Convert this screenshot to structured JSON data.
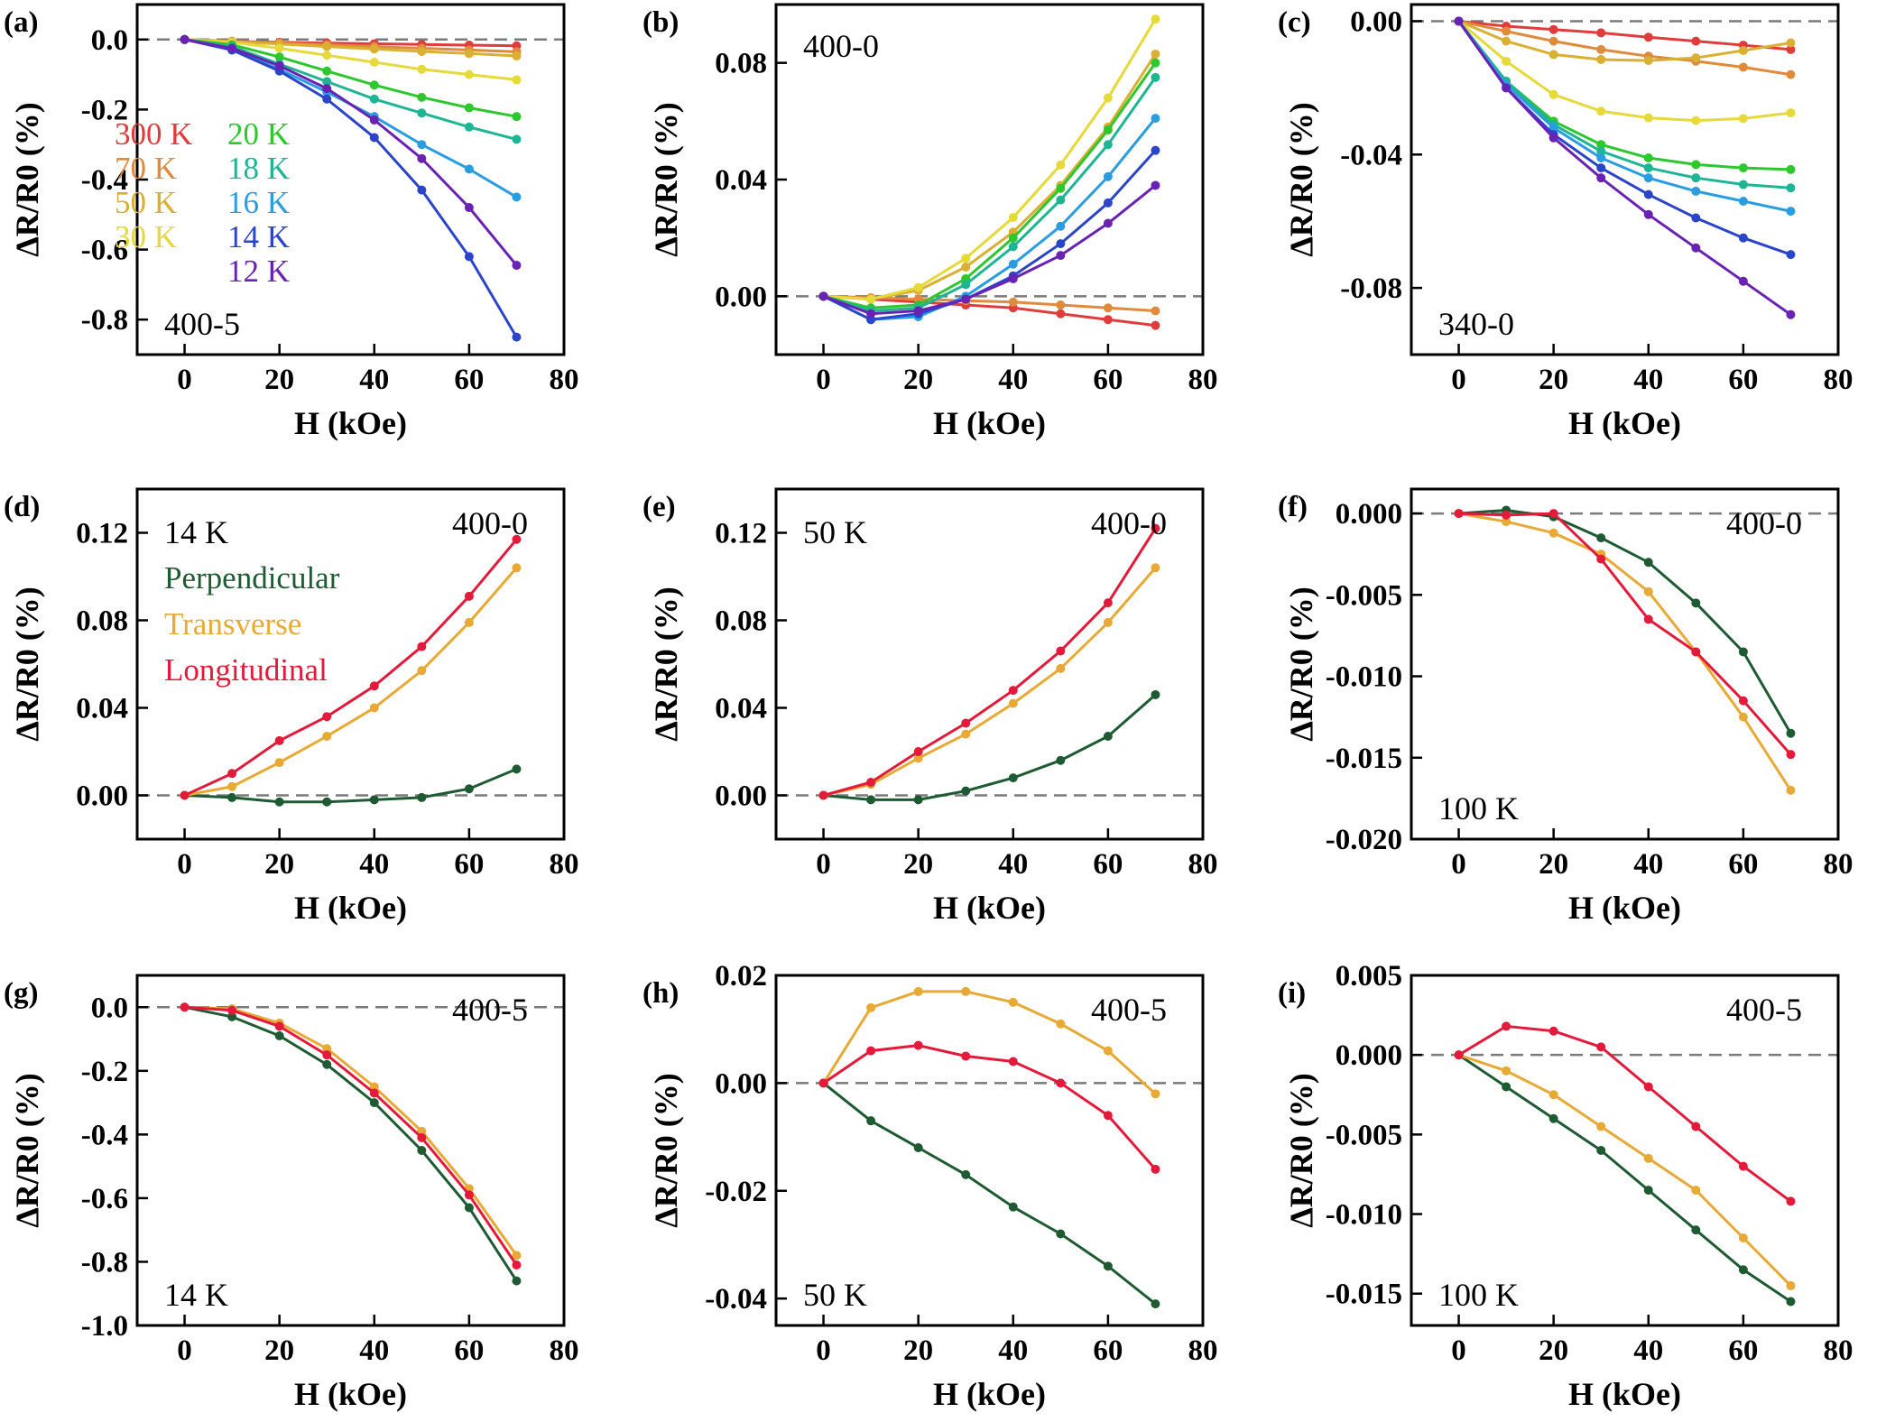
{
  "figure_title": "",
  "chart_data": [
    {
      "panel": "(a)",
      "type": "line",
      "annotation": "400-5",
      "xlabel": "H (kOe)",
      "ylabel": "ΔR/R0 (%)",
      "xlim": [
        -10,
        80
      ],
      "ylim": [
        -0.9,
        0.1
      ],
      "x_ticks": [
        0,
        20,
        40,
        60,
        80
      ],
      "x_tick_labels": [
        "0",
        "20",
        "40",
        "60",
        "80"
      ],
      "y_ticks": [
        0.0,
        -0.2,
        -0.4,
        -0.6,
        -0.8
      ],
      "y_tick_labels": [
        "0.0",
        "-0.2",
        "-0.4",
        "-0.6",
        "-0.8"
      ],
      "zero_line": true,
      "legend": {
        "placement": "left",
        "columns": 2
      },
      "x": [
        0,
        10,
        20,
        30,
        40,
        50,
        60,
        70
      ],
      "series": [
        {
          "name": "300 K",
          "color": "#e03c3c",
          "values": [
            0,
            -0.005,
            -0.008,
            -0.01,
            -0.012,
            -0.014,
            -0.016,
            -0.018
          ]
        },
        {
          "name": "70 K",
          "color": "#e08a3c",
          "values": [
            0,
            -0.005,
            -0.01,
            -0.015,
            -0.02,
            -0.025,
            -0.03,
            -0.035
          ]
        },
        {
          "name": "50 K",
          "color": "#d9b032",
          "values": [
            0,
            -0.006,
            -0.013,
            -0.02,
            -0.027,
            -0.034,
            -0.04,
            -0.047
          ]
        },
        {
          "name": "30 K",
          "color": "#e6d93a",
          "values": [
            0,
            -0.008,
            -0.025,
            -0.045,
            -0.065,
            -0.085,
            -0.1,
            -0.115
          ]
        },
        {
          "name": "20 K",
          "color": "#2ec72e",
          "values": [
            0,
            -0.015,
            -0.05,
            -0.09,
            -0.13,
            -0.165,
            -0.195,
            -0.22
          ]
        },
        {
          "name": "18 K",
          "color": "#1fb594",
          "values": [
            0,
            -0.02,
            -0.07,
            -0.12,
            -0.17,
            -0.21,
            -0.25,
            -0.285
          ]
        },
        {
          "name": "16 K",
          "color": "#2a9de0",
          "values": [
            0,
            -0.025,
            -0.085,
            -0.15,
            -0.22,
            -0.3,
            -0.37,
            -0.45
          ]
        },
        {
          "name": "14 K",
          "color": "#2a45c9",
          "values": [
            0,
            -0.03,
            -0.09,
            -0.17,
            -0.28,
            -0.43,
            -0.62,
            -0.85
          ]
        },
        {
          "name": "12 K",
          "color": "#6a22b3",
          "values": [
            0,
            -0.025,
            -0.075,
            -0.14,
            -0.23,
            -0.34,
            -0.48,
            -0.645
          ]
        }
      ]
    },
    {
      "panel": "(b)",
      "type": "line",
      "annotation": "400-0",
      "xlabel": "H (kOe)",
      "ylabel": "ΔR/R0 (%)",
      "xlim": [
        -10,
        80
      ],
      "ylim": [
        -0.02,
        0.1
      ],
      "x_ticks": [
        0,
        20,
        40,
        60,
        80
      ],
      "x_tick_labels": [
        "0",
        "20",
        "40",
        "60",
        "80"
      ],
      "y_ticks": [
        0.0,
        0.04,
        0.08
      ],
      "y_tick_labels": [
        "0.00",
        "0.04",
        "0.08"
      ],
      "zero_line": true,
      "x": [
        0,
        10,
        20,
        30,
        40,
        50,
        60,
        70
      ],
      "series": [
        {
          "name": "300 K",
          "color": "#e03c3c",
          "values": [
            0,
            -0.001,
            -0.002,
            -0.003,
            -0.004,
            -0.006,
            -0.008,
            -0.01
          ]
        },
        {
          "name": "70 K",
          "color": "#e08a3c",
          "values": [
            0,
            -0.0005,
            -0.001,
            -0.0015,
            -0.002,
            -0.003,
            -0.004,
            -0.005
          ]
        },
        {
          "name": "50 K",
          "color": "#d9b032",
          "values": [
            0,
            -0.001,
            0.002,
            0.01,
            0.022,
            0.038,
            0.058,
            0.083
          ]
        },
        {
          "name": "30 K",
          "color": "#e6d93a",
          "values": [
            0,
            -0.001,
            0.003,
            0.013,
            0.027,
            0.045,
            0.068,
            0.095
          ]
        },
        {
          "name": "20 K",
          "color": "#2ec72e",
          "values": [
            0,
            -0.004,
            -0.003,
            0.006,
            0.02,
            0.037,
            0.057,
            0.08
          ]
        },
        {
          "name": "18 K",
          "color": "#1fb594",
          "values": [
            0,
            -0.005,
            -0.004,
            0.004,
            0.017,
            0.033,
            0.052,
            0.075
          ]
        },
        {
          "name": "16 K",
          "color": "#2a9de0",
          "values": [
            0,
            -0.008,
            -0.007,
            0.0,
            0.011,
            0.024,
            0.041,
            0.061
          ]
        },
        {
          "name": "14 K",
          "color": "#2a45c9",
          "values": [
            0,
            -0.008,
            -0.006,
            -0.001,
            0.007,
            0.018,
            0.032,
            0.05
          ]
        },
        {
          "name": "12 K",
          "color": "#6a22b3",
          "values": [
            0,
            -0.006,
            -0.005,
            -0.001,
            0.006,
            0.014,
            0.025,
            0.038
          ]
        }
      ]
    },
    {
      "panel": "(c)",
      "type": "line",
      "annotation": "340-0",
      "xlabel": "H (kOe)",
      "ylabel": "ΔR/R0 (%)",
      "xlim": [
        -10,
        80
      ],
      "ylim": [
        -0.1,
        0.005
      ],
      "x_ticks": [
        0,
        20,
        40,
        60,
        80
      ],
      "x_tick_labels": [
        "0",
        "20",
        "40",
        "60",
        "80"
      ],
      "y_ticks": [
        0.0,
        -0.04,
        -0.08
      ],
      "y_tick_labels": [
        "0.00",
        "-0.04",
        "-0.08"
      ],
      "zero_line": true,
      "x": [
        0,
        10,
        20,
        30,
        40,
        50,
        60,
        70
      ],
      "series": [
        {
          "name": "300 K",
          "color": "#e03c3c",
          "values": [
            0,
            -0.0015,
            -0.0025,
            -0.0035,
            -0.0048,
            -0.006,
            -0.0072,
            -0.0085
          ]
        },
        {
          "name": "70 K",
          "color": "#e08a3c",
          "values": [
            0,
            -0.003,
            -0.006,
            -0.0085,
            -0.0105,
            -0.012,
            -0.0138,
            -0.016
          ]
        },
        {
          "name": "50 K",
          "color": "#d9b032",
          "values": [
            0,
            -0.006,
            -0.01,
            -0.0115,
            -0.0118,
            -0.011,
            -0.0088,
            -0.0065
          ]
        },
        {
          "name": "30 K",
          "color": "#e6d93a",
          "values": [
            0,
            -0.012,
            -0.022,
            -0.027,
            -0.029,
            -0.0298,
            -0.0292,
            -0.0275
          ]
        },
        {
          "name": "20 K",
          "color": "#2ec72e",
          "values": [
            0,
            -0.018,
            -0.03,
            -0.037,
            -0.041,
            -0.043,
            -0.044,
            -0.0445
          ]
        },
        {
          "name": "18 K",
          "color": "#1fb594",
          "values": [
            0,
            -0.018,
            -0.031,
            -0.039,
            -0.044,
            -0.047,
            -0.049,
            -0.05
          ]
        },
        {
          "name": "16 K",
          "color": "#2a9de0",
          "values": [
            0,
            -0.019,
            -0.032,
            -0.041,
            -0.047,
            -0.051,
            -0.054,
            -0.057
          ]
        },
        {
          "name": "14 K",
          "color": "#2a45c9",
          "values": [
            0,
            -0.02,
            -0.034,
            -0.044,
            -0.052,
            -0.059,
            -0.065,
            -0.07
          ]
        },
        {
          "name": "12 K",
          "color": "#6a22b3",
          "values": [
            0,
            -0.02,
            -0.035,
            -0.047,
            -0.058,
            -0.068,
            -0.078,
            -0.088
          ]
        }
      ]
    },
    {
      "panel": "(d)",
      "type": "line",
      "annotation": "400-0",
      "annotation_temp": "14 K",
      "xlabel": "H (kOe)",
      "ylabel": "ΔR/R0 (%)",
      "xlim": [
        -10,
        80
      ],
      "ylim": [
        -0.02,
        0.14
      ],
      "x_ticks": [
        0,
        20,
        40,
        60,
        80
      ],
      "x_tick_labels": [
        "0",
        "20",
        "40",
        "60",
        "80"
      ],
      "y_ticks": [
        0.0,
        0.04,
        0.08,
        0.12
      ],
      "y_tick_labels": [
        "0.00",
        "0.04",
        "0.08",
        "0.12"
      ],
      "zero_line": true,
      "legend": {
        "placement": "left"
      },
      "x": [
        0,
        10,
        20,
        30,
        40,
        50,
        60,
        70
      ],
      "series": [
        {
          "name": "Perpendicular",
          "color": "#1e5a32",
          "values": [
            0,
            -0.001,
            -0.003,
            -0.003,
            -0.002,
            -0.001,
            0.003,
            0.012
          ]
        },
        {
          "name": "Transverse",
          "color": "#e8a935",
          "values": [
            0,
            0.004,
            0.015,
            0.027,
            0.04,
            0.057,
            0.079,
            0.104
          ]
        },
        {
          "name": "Longitudinal",
          "color": "#e31a3a",
          "values": [
            0,
            0.01,
            0.025,
            0.036,
            0.05,
            0.068,
            0.091,
            0.117
          ]
        }
      ]
    },
    {
      "panel": "(e)",
      "type": "line",
      "annotation": "400-0",
      "annotation_temp": "50 K",
      "xlabel": "H (kOe)",
      "ylabel": "ΔR/R0 (%)",
      "xlim": [
        -10,
        80
      ],
      "ylim": [
        -0.02,
        0.14
      ],
      "x_ticks": [
        0,
        20,
        40,
        60,
        80
      ],
      "x_tick_labels": [
        "0",
        "20",
        "40",
        "60",
        "80"
      ],
      "y_ticks": [
        0.0,
        0.04,
        0.08,
        0.12
      ],
      "y_tick_labels": [
        "0.00",
        "0.04",
        "0.08",
        "0.12"
      ],
      "zero_line": true,
      "x": [
        0,
        10,
        20,
        30,
        40,
        50,
        60,
        70
      ],
      "series": [
        {
          "name": "Perpendicular",
          "color": "#1e5a32",
          "values": [
            0,
            -0.002,
            -0.002,
            0.002,
            0.008,
            0.016,
            0.027,
            0.046
          ]
        },
        {
          "name": "Transverse",
          "color": "#e8a935",
          "values": [
            0,
            0.005,
            0.017,
            0.028,
            0.042,
            0.058,
            0.079,
            0.104
          ]
        },
        {
          "name": "Longitudinal",
          "color": "#e31a3a",
          "values": [
            0,
            0.006,
            0.02,
            0.033,
            0.048,
            0.066,
            0.088,
            0.122
          ]
        }
      ]
    },
    {
      "panel": "(f)",
      "type": "line",
      "annotation": "400-0",
      "annotation_temp": "100 K",
      "xlabel": "H (kOe)",
      "ylabel": "ΔR/R0 (%)",
      "xlim": [
        -10,
        80
      ],
      "ylim": [
        -0.02,
        0.0015
      ],
      "x_ticks": [
        0,
        20,
        40,
        60,
        80
      ],
      "x_tick_labels": [
        "0",
        "20",
        "40",
        "60",
        "80"
      ],
      "y_ticks": [
        0.0,
        -0.005,
        -0.01,
        -0.015,
        -0.02
      ],
      "y_tick_labels": [
        "0.000",
        "-0.005",
        "-0.010",
        "-0.015",
        "-0.020"
      ],
      "zero_line": true,
      "x": [
        0,
        10,
        20,
        30,
        40,
        50,
        60,
        70
      ],
      "series": [
        {
          "name": "Perpendicular",
          "color": "#1e5a32",
          "values": [
            0,
            0.0002,
            -0.0002,
            -0.0015,
            -0.003,
            -0.0055,
            -0.0085,
            -0.0135
          ]
        },
        {
          "name": "Transverse",
          "color": "#e8a935",
          "values": [
            0,
            -0.0005,
            -0.0012,
            -0.0025,
            -0.0048,
            -0.0085,
            -0.0125,
            -0.017
          ]
        },
        {
          "name": "Longitudinal",
          "color": "#e31a3a",
          "values": [
            0,
            -0.0001,
            0.0,
            -0.0028,
            -0.0065,
            -0.0085,
            -0.0115,
            -0.0148
          ]
        }
      ]
    },
    {
      "panel": "(g)",
      "type": "line",
      "annotation": "400-5",
      "annotation_temp": "14 K",
      "xlabel": "H (kOe)",
      "ylabel": "ΔR/R0 (%)",
      "xlim": [
        -10,
        80
      ],
      "ylim": [
        -1.0,
        0.1
      ],
      "x_ticks": [
        0,
        20,
        40,
        60,
        80
      ],
      "x_tick_labels": [
        "0",
        "20",
        "40",
        "60",
        "80"
      ],
      "y_ticks": [
        0.0,
        -0.2,
        -0.4,
        -0.6,
        -0.8,
        -1.0
      ],
      "y_tick_labels": [
        "0.0",
        "-0.2",
        "-0.4",
        "-0.6",
        "-0.8",
        "-1.0"
      ],
      "zero_line": true,
      "x": [
        0,
        10,
        20,
        30,
        40,
        50,
        60,
        70
      ],
      "series": [
        {
          "name": "Perpendicular",
          "color": "#1e5a32",
          "values": [
            0,
            -0.03,
            -0.09,
            -0.18,
            -0.3,
            -0.45,
            -0.63,
            -0.86
          ]
        },
        {
          "name": "Transverse",
          "color": "#e8a935",
          "values": [
            0,
            -0.005,
            -0.05,
            -0.13,
            -0.25,
            -0.39,
            -0.57,
            -0.78
          ]
        },
        {
          "name": "Longitudinal",
          "color": "#e31a3a",
          "values": [
            0,
            -0.01,
            -0.06,
            -0.15,
            -0.27,
            -0.41,
            -0.59,
            -0.81
          ]
        }
      ]
    },
    {
      "panel": "(h)",
      "type": "line",
      "annotation": "400-5",
      "annotation_temp": "50 K",
      "xlabel": "H (kOe)",
      "ylabel": "ΔR/R0 (%)",
      "xlim": [
        -10,
        80
      ],
      "ylim": [
        -0.045,
        0.02
      ],
      "x_ticks": [
        0,
        20,
        40,
        60,
        80
      ],
      "x_tick_labels": [
        "0",
        "20",
        "40",
        "60",
        "80"
      ],
      "y_ticks": [
        0.02,
        0.0,
        -0.02,
        -0.04
      ],
      "y_tick_labels": [
        "0.02",
        "0.00",
        "-0.02",
        "-0.04"
      ],
      "zero_line": true,
      "x": [
        0,
        10,
        20,
        30,
        40,
        50,
        60,
        70
      ],
      "series": [
        {
          "name": "Perpendicular",
          "color": "#1e5a32",
          "values": [
            0,
            -0.007,
            -0.012,
            -0.017,
            -0.023,
            -0.028,
            -0.034,
            -0.041
          ]
        },
        {
          "name": "Transverse",
          "color": "#e8a935",
          "values": [
            0,
            0.014,
            0.017,
            0.017,
            0.015,
            0.011,
            0.006,
            -0.002
          ]
        },
        {
          "name": "Longitudinal",
          "color": "#e31a3a",
          "values": [
            0,
            0.006,
            0.007,
            0.005,
            0.004,
            0.0,
            -0.006,
            -0.016
          ]
        }
      ]
    },
    {
      "panel": "(i)",
      "type": "line",
      "annotation": "400-5",
      "annotation_temp": "100 K",
      "xlabel": "H (kOe)",
      "ylabel": "ΔR/R0 (%)",
      "xlim": [
        -10,
        80
      ],
      "ylim": [
        -0.017,
        0.005
      ],
      "x_ticks": [
        0,
        20,
        40,
        60,
        80
      ],
      "x_tick_labels": [
        "0",
        "20",
        "40",
        "60",
        "80"
      ],
      "y_ticks": [
        0.005,
        0.0,
        -0.005,
        -0.01,
        -0.015
      ],
      "y_tick_labels": [
        "0.005",
        "0.000",
        "-0.005",
        "-0.010",
        "-0.015"
      ],
      "zero_line": true,
      "x": [
        0,
        10,
        20,
        30,
        40,
        50,
        60,
        70
      ],
      "series": [
        {
          "name": "Perpendicular",
          "color": "#1e5a32",
          "values": [
            0,
            -0.002,
            -0.004,
            -0.006,
            -0.0085,
            -0.011,
            -0.0135,
            -0.0155
          ]
        },
        {
          "name": "Transverse",
          "color": "#e8a935",
          "values": [
            0,
            -0.001,
            -0.0025,
            -0.0045,
            -0.0065,
            -0.0085,
            -0.0115,
            -0.0145
          ]
        },
        {
          "name": "Longitudinal",
          "color": "#e31a3a",
          "values": [
            0,
            0.0018,
            0.0015,
            0.0005,
            -0.002,
            -0.0045,
            -0.007,
            -0.0092
          ]
        }
      ]
    }
  ]
}
